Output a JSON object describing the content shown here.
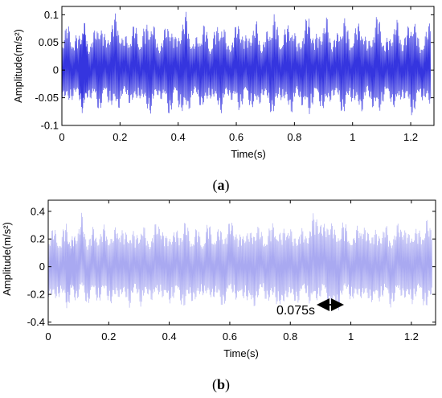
{
  "chart_data": [
    {
      "id": "a",
      "type": "line",
      "caption_open": "(",
      "caption_letter": "a",
      "caption_close": ")",
      "title": "",
      "xlabel": "Time(s)",
      "ylabel": "Amplitude(m/s²)",
      "xlim": [
        0,
        1.28
      ],
      "ylim": [
        -0.1,
        0.115
      ],
      "xticks": [
        0,
        0.2,
        0.4,
        0.6,
        0.8,
        1,
        1.2
      ],
      "xtick_labels": [
        "0",
        "0.2",
        "0.4",
        "0.6",
        "0.8",
        "1",
        "1.2"
      ],
      "yticks": [
        -0.1,
        -0.05,
        0,
        0.05,
        0.1
      ],
      "ytick_labels": [
        "-0.1",
        "-0.05",
        "0",
        "0.05",
        "0.1"
      ],
      "grid": false,
      "series": [
        {
          "color": "#1f1fdc",
          "x": [
            0,
            0.02,
            0.04,
            0.06,
            0.075,
            0.09,
            0.11,
            0.13,
            0.15,
            0.17,
            0.19,
            0.21,
            0.23,
            0.25,
            0.27,
            0.29,
            0.31,
            0.33,
            0.35,
            0.37,
            0.39,
            0.41,
            0.43,
            0.45,
            0.47,
            0.49,
            0.51,
            0.53,
            0.55,
            0.57,
            0.59,
            0.61,
            0.63,
            0.65,
            0.67,
            0.69,
            0.71,
            0.73,
            0.75,
            0.77,
            0.79,
            0.81,
            0.83,
            0.85,
            0.87,
            0.89,
            0.91,
            0.93,
            0.95,
            0.97,
            0.99,
            1.01,
            1.03,
            1.05,
            1.07,
            1.09,
            1.11,
            1.13,
            1.15,
            1.17,
            1.19,
            1.21,
            1.23,
            1.25,
            1.27
          ],
          "y_upper": [
            0.06,
            0.09,
            0.06,
            0.07,
            0.1,
            0.05,
            0.07,
            0.1,
            0.06,
            0.09,
            0.11,
            0.06,
            0.07,
            0.09,
            0.06,
            0.09,
            0.1,
            0.05,
            0.07,
            0.1,
            0.06,
            0.09,
            0.11,
            0.05,
            0.07,
            0.09,
            0.05,
            0.08,
            0.1,
            0.05,
            0.07,
            0.1,
            0.06,
            0.08,
            0.09,
            0.05,
            0.08,
            0.11,
            0.06,
            0.08,
            0.1,
            0.05,
            0.08,
            0.11,
            0.06,
            0.08,
            0.1,
            0.06,
            0.07,
            0.11,
            0.06,
            0.08,
            0.1,
            0.05,
            0.08,
            0.11,
            0.05,
            0.07,
            0.1,
            0.06,
            0.08,
            0.11,
            0.05,
            0.07,
            0.1
          ],
          "y_lower": [
            -0.05,
            -0.07,
            -0.05,
            -0.06,
            -0.09,
            -0.05,
            -0.06,
            -0.08,
            -0.05,
            -0.07,
            -0.08,
            -0.05,
            -0.06,
            -0.07,
            -0.05,
            -0.08,
            -0.08,
            -0.05,
            -0.06,
            -0.09,
            -0.05,
            -0.08,
            -0.09,
            -0.05,
            -0.06,
            -0.08,
            -0.05,
            -0.07,
            -0.08,
            -0.05,
            -0.06,
            -0.08,
            -0.05,
            -0.07,
            -0.08,
            -0.05,
            -0.07,
            -0.09,
            -0.05,
            -0.07,
            -0.08,
            -0.05,
            -0.07,
            -0.09,
            -0.05,
            -0.07,
            -0.08,
            -0.05,
            -0.06,
            -0.09,
            -0.05,
            -0.07,
            -0.08,
            -0.05,
            -0.07,
            -0.09,
            -0.05,
            -0.06,
            -0.08,
            -0.05,
            -0.07,
            -0.09,
            -0.05,
            -0.06,
            -0.08
          ]
        }
      ]
    },
    {
      "id": "b",
      "type": "line",
      "caption_open": "(",
      "caption_letter": "b",
      "caption_close": ")",
      "title": "",
      "xlabel": "Time(s)",
      "ylabel": "Amplitude(m/s²)",
      "xlim": [
        0,
        1.28
      ],
      "ylim": [
        -0.42,
        0.48
      ],
      "xticks": [
        0,
        0.2,
        0.4,
        0.6,
        0.8,
        1,
        1.2
      ],
      "xtick_labels": [
        "0",
        "0.2",
        "0.4",
        "0.6",
        "0.8",
        "1",
        "1.2"
      ],
      "yticks": [
        -0.4,
        -0.2,
        0,
        0.2,
        0.4
      ],
      "ytick_labels": [
        "-0.4",
        "-0.2",
        "0",
        "0.2",
        "0.4"
      ],
      "grid": false,
      "annotation": {
        "text": "0.075s",
        "x_start": 0.88,
        "x_end": 0.955,
        "y": -0.27
      },
      "series": [
        {
          "color": "#6f6fe8",
          "x": [
            0,
            0.02,
            0.04,
            0.06,
            0.075,
            0.09,
            0.11,
            0.13,
            0.15,
            0.17,
            0.19,
            0.21,
            0.23,
            0.25,
            0.27,
            0.29,
            0.31,
            0.33,
            0.35,
            0.37,
            0.39,
            0.41,
            0.43,
            0.45,
            0.47,
            0.49,
            0.51,
            0.53,
            0.55,
            0.57,
            0.59,
            0.61,
            0.63,
            0.65,
            0.67,
            0.69,
            0.71,
            0.73,
            0.75,
            0.77,
            0.79,
            0.81,
            0.83,
            0.85,
            0.87,
            0.89,
            0.91,
            0.93,
            0.95,
            0.97,
            0.99,
            1.01,
            1.03,
            1.05,
            1.07,
            1.09,
            1.11,
            1.13,
            1.15,
            1.17,
            1.19,
            1.21,
            1.23,
            1.25,
            1.27
          ],
          "y_upper": [
            0.25,
            0.3,
            0.22,
            0.35,
            0.2,
            0.28,
            0.4,
            0.22,
            0.3,
            0.26,
            0.33,
            0.22,
            0.37,
            0.25,
            0.3,
            0.24,
            0.35,
            0.2,
            0.3,
            0.38,
            0.22,
            0.3,
            0.26,
            0.37,
            0.24,
            0.3,
            0.22,
            0.35,
            0.25,
            0.3,
            0.28,
            0.4,
            0.22,
            0.31,
            0.25,
            0.36,
            0.22,
            0.3,
            0.35,
            0.24,
            0.38,
            0.22,
            0.3,
            0.26,
            0.36,
            0.45,
            0.3,
            0.42,
            0.25,
            0.36,
            0.3,
            0.22,
            0.4,
            0.26,
            0.31,
            0.24,
            0.35,
            0.22,
            0.3,
            0.37,
            0.24,
            0.32,
            0.26,
            0.38,
            0.25
          ],
          "y_lower": [
            -0.22,
            -0.3,
            -0.2,
            -0.35,
            -0.22,
            -0.27,
            -0.2,
            -0.3,
            -0.22,
            -0.28,
            -0.2,
            -0.33,
            -0.22,
            -0.26,
            -0.3,
            -0.2,
            -0.32,
            -0.22,
            -0.28,
            -0.2,
            -0.3,
            -0.26,
            -0.22,
            -0.34,
            -0.24,
            -0.3,
            -0.2,
            -0.28,
            -0.22,
            -0.33,
            -0.25,
            -0.2,
            -0.3,
            -0.22,
            -0.35,
            -0.26,
            -0.2,
            -0.3,
            -0.24,
            -0.38,
            -0.22,
            -0.3,
            -0.26,
            -0.2,
            -0.32,
            -0.25,
            -0.22,
            -0.3,
            -0.4,
            -0.24,
            -0.2,
            -0.3,
            -0.22,
            -0.28,
            -0.26,
            -0.3,
            -0.2,
            -0.32,
            -0.24,
            -0.22,
            -0.3,
            -0.26,
            -0.2,
            -0.36,
            -0.22
          ]
        }
      ]
    }
  ]
}
